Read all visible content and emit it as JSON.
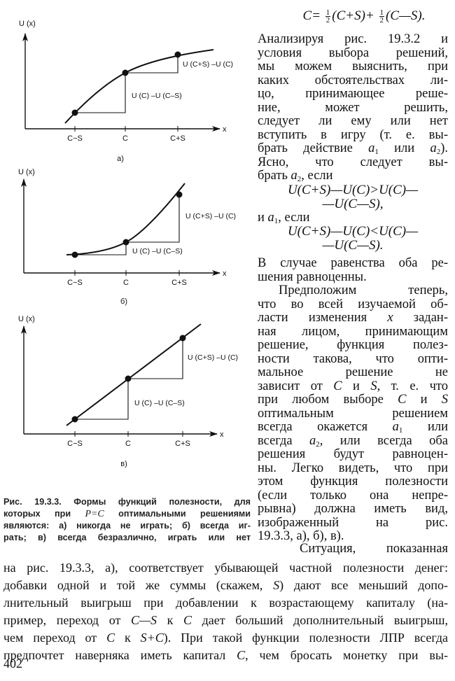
{
  "figures": [
    {
      "y_axis_label": "U (x)",
      "x_axis_label": "x",
      "ticks": [
        "C−S",
        "C",
        "C+S"
      ],
      "upper_annotation": "U (C+S) –U (C)",
      "lower_annotation": "U (C) –U (C–S)",
      "panel_label": "а)",
      "shape": "concave"
    },
    {
      "y_axis_label": "U (x)",
      "x_axis_label": "x",
      "ticks": [
        "C−S",
        "C",
        "C+S"
      ],
      "upper_annotation": "U (C+S) –U (C)",
      "lower_annotation": "U (C) –U (C–S)",
      "panel_label": "б)",
      "shape": "convex"
    },
    {
      "y_axis_label": "U (x)",
      "x_axis_label": "x",
      "ticks": [
        "C−S",
        "C",
        "C+S"
      ],
      "upper_annotation": "U (C+S) –U (C)",
      "lower_annotation": "U (C) –U (C–S)",
      "panel_label": "в)",
      "shape": "linear"
    }
  ],
  "top_formula": {
    "lhs": "C=",
    "frac_num": "1",
    "frac_den": "2",
    "term1": "(C+S)+",
    "term2": "(C—S)."
  },
  "right_column": [
    {
      "type": "text",
      "lines": [
        [
          "Анализируя рис. 19.3.2 и"
        ],
        [
          "условия выбора решений,"
        ],
        [
          "мы можем выяснить, при"
        ],
        [
          "каких обстоятельствах ли-"
        ],
        [
          "цо, принимающее реше-"
        ],
        [
          "ние, может решить,"
        ],
        [
          "следует ли ему или нет"
        ],
        [
          "вступить в игру (т. е. вы-"
        ],
        [
          "брать действие ",
          {
            "i": "a"
          },
          {
            "sub": "1"
          },
          " или ",
          {
            "i": "a"
          },
          {
            "sub": "2"
          },
          ")."
        ],
        [
          "Ясно, что следует вы-"
        ],
        [
          "брать ",
          {
            "i": "a"
          },
          {
            "sub": "2"
          },
          ", если"
        ]
      ]
    },
    {
      "type": "formula",
      "id": "f1",
      "lines": [
        "U(C+S)—U(C)>U(C)—",
        "—U(C—S),"
      ]
    },
    {
      "type": "text",
      "lines": [
        [
          "и ",
          {
            "i": "a"
          },
          {
            "sub": "1"
          },
          ", если"
        ]
      ]
    },
    {
      "type": "formula",
      "id": "f2",
      "lines": [
        "U(C+S)—U(C)<U(C)—",
        "—U(C—S)."
      ]
    },
    {
      "type": "text",
      "lines": [
        [
          "В случае равенства оба ре-"
        ],
        [
          "шения равноценны."
        ]
      ]
    },
    {
      "type": "text",
      "indent": true,
      "lines": [
        [
          "Предположим теперь,"
        ],
        [
          "что во всей изучаемой об-"
        ],
        [
          "ласти изменения ",
          {
            "i": "x"
          },
          " задан-"
        ],
        [
          "ная лицом, принимающим"
        ],
        [
          "решение, функция полез-"
        ],
        [
          "ности такова, что опти-"
        ],
        [
          "мальное решение не"
        ],
        [
          "зависит от ",
          {
            "i": "C"
          },
          " и ",
          {
            "i": "S"
          },
          ", т. е. что"
        ],
        [
          "при любом выборе ",
          {
            "i": "C"
          },
          " и ",
          {
            "i": "S"
          }
        ],
        [
          "оптимальным решением"
        ],
        [
          "всегда окажется ",
          {
            "i": "a"
          },
          {
            "sub": "1"
          },
          " или"
        ],
        [
          "всегда ",
          {
            "i": "a"
          },
          {
            "sub": "2"
          },
          ", или всегда оба"
        ],
        [
          "решения будут равноцен-"
        ],
        [
          "ны. Легко видеть, что при"
        ],
        [
          "этом функция полезности"
        ],
        [
          "(если только она непре-"
        ],
        [
          "рывна) должна иметь вид,"
        ],
        [
          "изображенный на рис."
        ],
        [
          "19.3.3, а), б), в)."
        ]
      ]
    }
  ],
  "situation_first_line": [
    "Ситуация, показанная"
  ],
  "bottom_paragraph": [
    [
      "на рис. 19.3.3, а), соответствует убывающей частной полезности денег:"
    ],
    [
      "добавки одной и той же суммы (скажем, ",
      {
        "i": "S"
      },
      ") дают все меньший допо-"
    ],
    [
      "лнительный выигрыш при добавлении к возрастающему капиталу (на-"
    ],
    [
      "пример, переход от ",
      {
        "i": "C—S"
      },
      " к ",
      {
        "i": "C"
      },
      " дает больший дополнительный выигрыш,"
    ],
    [
      "чем переход от ",
      {
        "i": "C"
      },
      " к ",
      {
        "i": "S+C"
      },
      "). При такой функции полезности ЛПР всегда"
    ],
    [
      "предпочтет наверняка иметь капитал ",
      {
        "i": "C"
      },
      ", чем бросать монетку при вы-"
    ]
  ],
  "caption": [
    [
      "Рис. 19.3.3. Формы функций полезности, для"
    ],
    [
      "которых при ",
      {
        "i": "P=C"
      },
      " оптимальными решениями"
    ],
    [
      "являются: а) никогда не играть; б) всегда иг-"
    ],
    [
      "рать; в) всегда безразлично, играть или нет"
    ]
  ],
  "page_number": "402"
}
